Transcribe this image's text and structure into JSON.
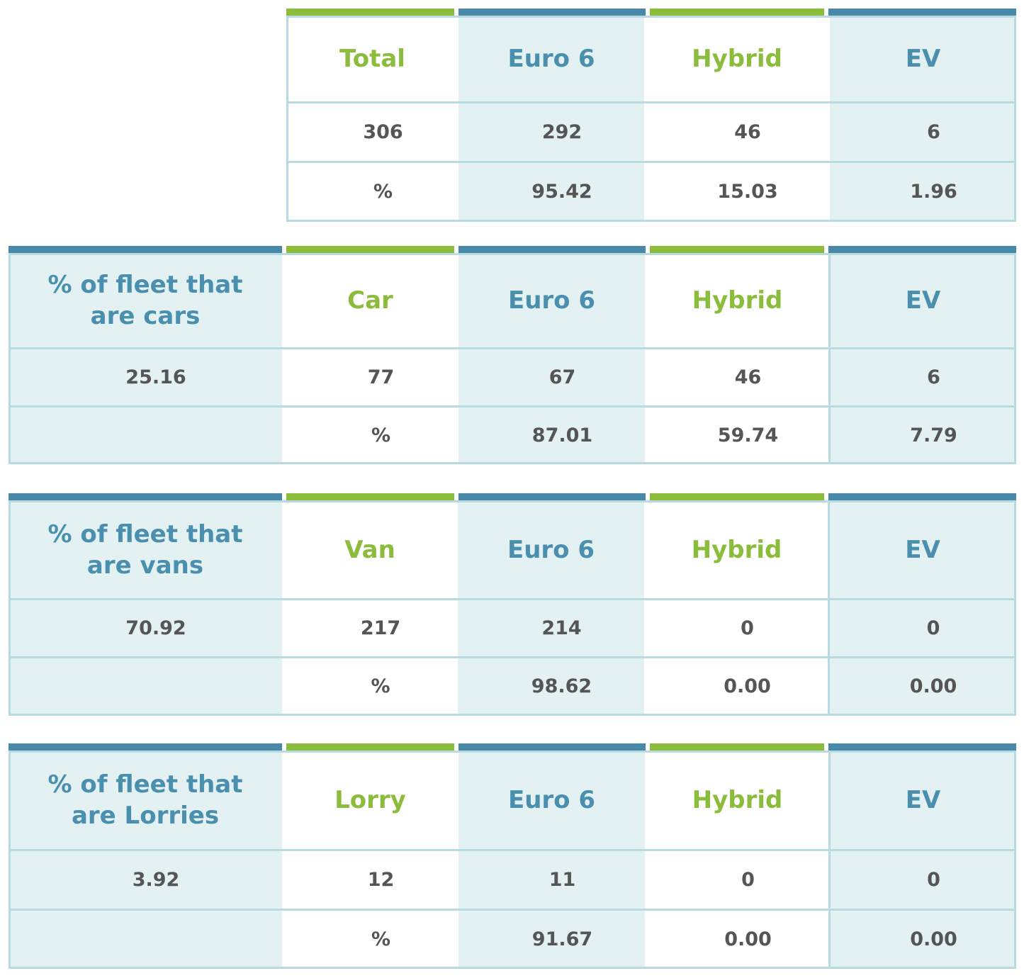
{
  "total_table": {
    "headers": [
      "Total",
      "Euro 6",
      "Hybrid",
      "EV"
    ],
    "counts": [
      "306",
      "292",
      "46",
      "6"
    ],
    "percent_row": [
      "%",
      "95.42",
      "15.03",
      "1.96"
    ]
  },
  "vehicle_tables": [
    {
      "share_label": "% of fleet that are cars",
      "share_value": "25.16",
      "headers": [
        "Car",
        "Euro 6",
        "Hybrid",
        "EV"
      ],
      "counts": [
        "77",
        "67",
        "46",
        "6"
      ],
      "percent_row": [
        "%",
        "87.01",
        "59.74",
        "7.79"
      ]
    },
    {
      "share_label": "% of fleet that are vans",
      "share_value": "70.92",
      "headers": [
        "Van",
        "Euro 6",
        "Hybrid",
        "EV"
      ],
      "counts": [
        "217",
        "214",
        "0",
        "0"
      ],
      "percent_row": [
        "%",
        "98.62",
        "0.00",
        "0.00"
      ]
    },
    {
      "share_label": "% of fleet that are Lorries",
      "share_value": "3.92",
      "headers": [
        "Lorry",
        "Euro 6",
        "Hybrid",
        "EV"
      ],
      "counts": [
        "12",
        "11",
        "0",
        "0"
      ],
      "percent_row": [
        "%",
        "91.67",
        "0.00",
        "0.00"
      ]
    }
  ],
  "colors": {
    "accent_green": "#8cbc3c",
    "accent_blue": "#4888a8",
    "header_blue_text": "#4a8fae",
    "cell_tint": "#e4f1f2",
    "grid_line": "#b8dbe2",
    "value_text": "#555555"
  }
}
